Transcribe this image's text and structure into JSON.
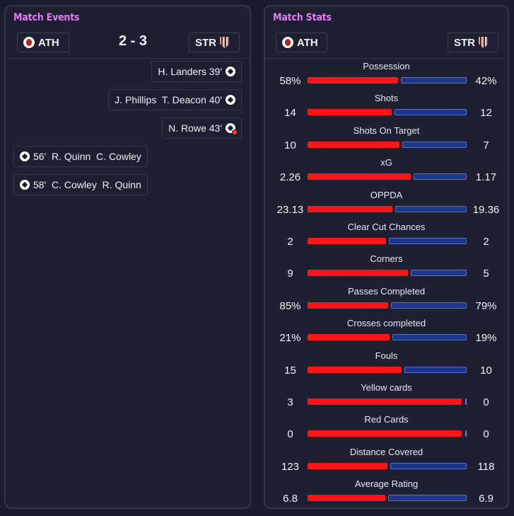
{
  "events_panel": {
    "title": "Match Events",
    "home_team": "ATH",
    "away_team": "STR",
    "score": "2 - 3",
    "events": [
      {
        "side": "away",
        "text": "H. Landers 39'",
        "icon": "goal-icon"
      },
      {
        "side": "away",
        "text": "J. Phillips  T. Deacon 40'",
        "icon": "goal-icon"
      },
      {
        "side": "away",
        "text": "N. Rowe 43'",
        "icon": "own-goal-icon"
      },
      {
        "side": "home",
        "text": "56'  R. Quinn  C. Cowley",
        "icon": "goal-icon"
      },
      {
        "side": "home",
        "text": "58'  C. Cowley  R. Quinn",
        "icon": "goal-icon"
      }
    ]
  },
  "stats_panel": {
    "title": "Match Stats",
    "home_team": "ATH",
    "away_team": "STR",
    "home_color": "#ff1418",
    "away_color": "#1d358a",
    "stats": [
      {
        "name": "Possession",
        "home": "58%",
        "away": "42%",
        "home_share": 0.58
      },
      {
        "name": "Shots",
        "home": "14",
        "away": "12",
        "home_share": 0.538
      },
      {
        "name": "Shots On Target",
        "home": "10",
        "away": "7",
        "home_share": 0.588
      },
      {
        "name": "xG",
        "home": "2.26",
        "away": "1.17",
        "home_share": 0.659
      },
      {
        "name": "OPPDA",
        "home": "23.13",
        "away": "19.36",
        "home_share": 0.544
      },
      {
        "name": "Clear Cut Chances",
        "home": "2",
        "away": "2",
        "home_share": 0.5
      },
      {
        "name": "Corners",
        "home": "9",
        "away": "5",
        "home_share": 0.643
      },
      {
        "name": "Passes Completed",
        "home": "85%",
        "away": "79%",
        "home_share": 0.518
      },
      {
        "name": "Crosses completed",
        "home": "21%",
        "away": "19%",
        "home_share": 0.525
      },
      {
        "name": "Fouls",
        "home": "15",
        "away": "10",
        "home_share": 0.6
      },
      {
        "name": "Yellow cards",
        "home": "3",
        "away": "0",
        "home_share": 1.0
      },
      {
        "name": "Red Cards",
        "home": "0",
        "away": "0",
        "home_share": 1.0
      },
      {
        "name": "Distance Covered",
        "home": "123",
        "away": "118",
        "home_share": 0.51
      },
      {
        "name": "Average Rating",
        "home": "6.8",
        "away": "6.9",
        "home_share": 0.496
      }
    ]
  }
}
